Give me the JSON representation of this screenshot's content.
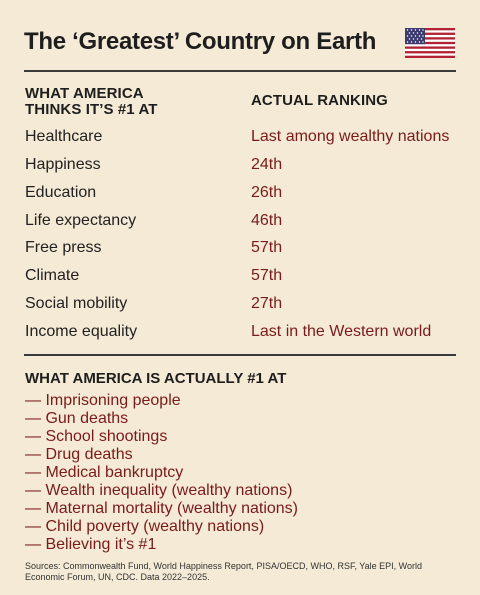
{
  "title": "The ‘Greatest’ Country on Earth",
  "flag_icon": "us-flag-icon",
  "colors": {
    "background": "#f4ead5",
    "accent": "#7a1b1b",
    "text": "#1e1e1e"
  },
  "table": {
    "col1_header_line1": "WHAT AMERICA",
    "col1_header_line2": "THINKS IT’S #1 AT",
    "col2_header": "ACTUAL RANKING",
    "rows": [
      {
        "item": "Healthcare",
        "rank": "Last among wealthy nations"
      },
      {
        "item": "Happiness",
        "rank": "24th"
      },
      {
        "item": "Education",
        "rank": "26th"
      },
      {
        "item": "Life expectancy",
        "rank": "46th"
      },
      {
        "item": "Free press",
        "rank": "57th"
      },
      {
        "item": "Climate",
        "rank": "57th"
      },
      {
        "item": "Social mobility",
        "rank": "27th"
      },
      {
        "item": "Income equality",
        "rank": "Last in the Western world"
      }
    ]
  },
  "actual": {
    "header": "WHAT AMERICA IS ACTUALLY #1 AT",
    "dash": "—",
    "items": [
      "Imprisoning people",
      "Gun deaths",
      "School shootings",
      "Drug deaths",
      "Medical bankruptcy",
      "Wealth inequality (wealthy nations)",
      "Maternal mortality (wealthy nations)",
      "Child poverty (wealthy nations)",
      "Believing it’s #1"
    ]
  },
  "sources": "Sources: Commonwealth Fund, World Happiness Report, PISA/OECD, WHO, RSF, Yale EPI, World Economic Forum, UN, CDC. Data 2022–2025."
}
